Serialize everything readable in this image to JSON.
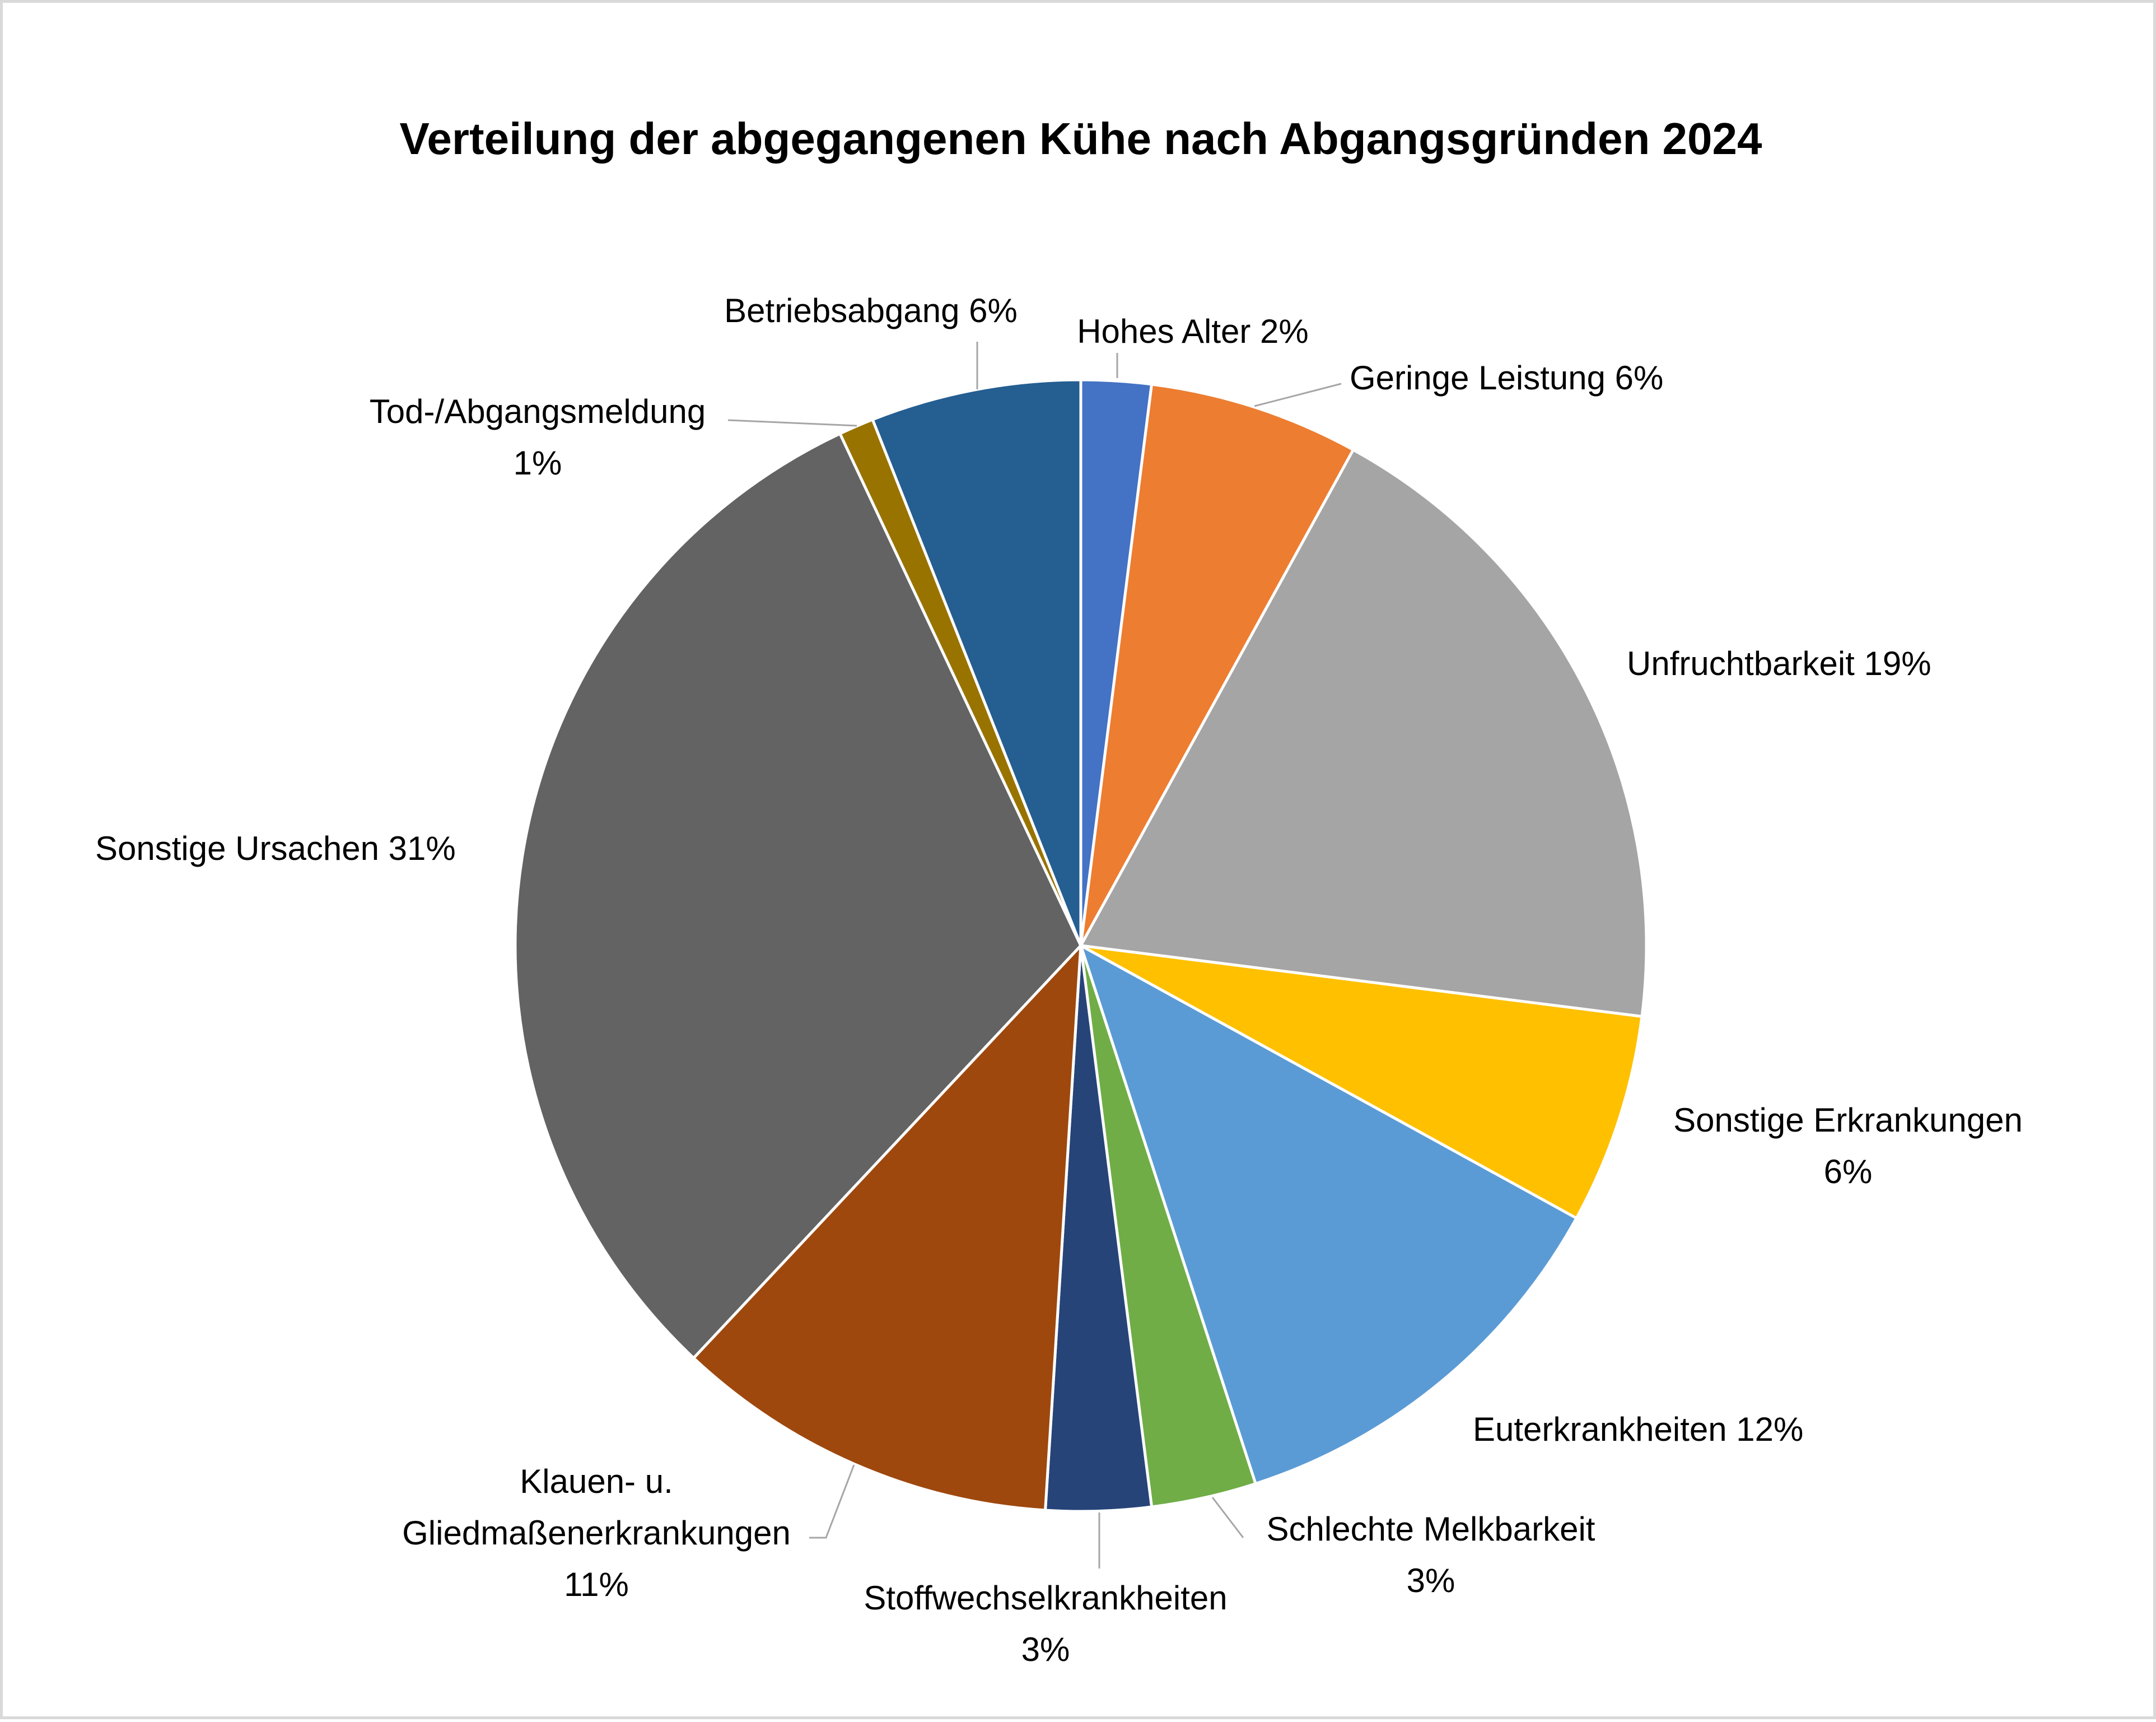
{
  "chart_data": {
    "type": "pie",
    "title": "Verteilung der abgegangenen Kühe nach Abgangsgründen 2024",
    "legend": "none",
    "slices": [
      {
        "name": "Hohes Alter",
        "value": 2,
        "label": [
          "Hohes Alter 2%"
        ],
        "color": "#4472C4"
      },
      {
        "name": "Geringe Leistung",
        "value": 6,
        "label": [
          "Geringe Leistung  6%"
        ],
        "color": "#ED7D31"
      },
      {
        "name": "Unfruchtbarkeit",
        "value": 19,
        "label": [
          "Unfruchtbarkeit 19%"
        ],
        "color": "#A5A5A5"
      },
      {
        "name": "Sonstige Erkrankungen",
        "value": 6,
        "label": [
          "Sonstige Erkrankungen",
          "6%"
        ],
        "color": "#FFC000"
      },
      {
        "name": "Euterkrankheiten",
        "value": 12,
        "label": [
          "Euterkrankheiten 12%"
        ],
        "color": "#5B9BD5"
      },
      {
        "name": "Schlechte Melkbarkeit",
        "value": 3,
        "label": [
          "Schlechte Melkbarkeit",
          "3%"
        ],
        "color": "#70AD47"
      },
      {
        "name": "Stoffwechselkrankheiten",
        "value": 3,
        "label": [
          "Stoffwechselkrankheiten",
          "3%"
        ],
        "color": "#264478"
      },
      {
        "name": "Klauen- u. Gliedmaßenerkrankungen",
        "value": 11,
        "label": [
          "Klauen- u.",
          "Gliedmaßenerkrankungen",
          "11%"
        ],
        "color": "#9E480E"
      },
      {
        "name": "Sonstige Ursachen",
        "value": 31,
        "label": [
          "Sonstige Ursachen 31%"
        ],
        "color": "#636363"
      },
      {
        "name": "Tod-/Abgangsmeldung",
        "value": 1,
        "label": [
          "Tod-/Abgangsmeldung",
          "1%"
        ],
        "color": "#997300"
      },
      {
        "name": "Betriebsabgang",
        "value": 6,
        "label": [
          "Betriebsabgang 6%"
        ],
        "color": "#255E91"
      }
    ]
  }
}
